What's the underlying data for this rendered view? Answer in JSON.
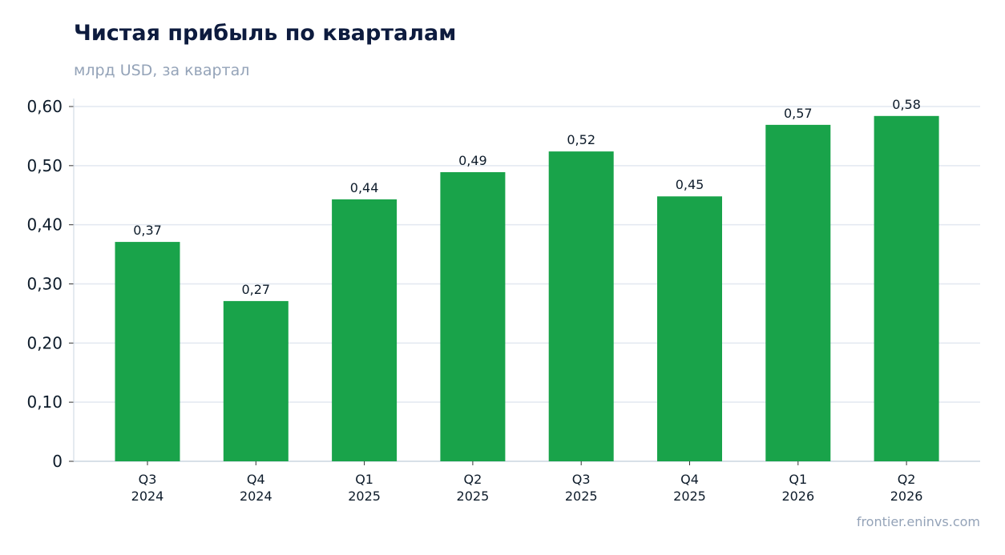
{
  "chart_data": {
    "type": "bar",
    "title": "Чистая прибыль по кварталам",
    "subtitle": "млрд USD, за квартал",
    "categories": [
      [
        "Q3",
        "2024"
      ],
      [
        "Q4",
        "2024"
      ],
      [
        "Q1",
        "2025"
      ],
      [
        "Q2",
        "2025"
      ],
      [
        "Q3",
        "2025"
      ],
      [
        "Q4",
        "2025"
      ],
      [
        "Q1",
        "2026"
      ],
      [
        "Q2",
        "2026"
      ]
    ],
    "values": [
      0.371,
      0.271,
      0.443,
      0.489,
      0.524,
      0.448,
      0.569,
      0.584
    ],
    "value_labels": [
      "0,37",
      "0,27",
      "0,44",
      "0,49",
      "0,52",
      "0,45",
      "0,57",
      "0,58"
    ],
    "yticks": [
      0,
      0.1,
      0.2,
      0.3,
      0.4,
      0.5,
      0.6
    ],
    "ytick_labels": [
      "0",
      "0,10",
      "0,20",
      "0,30",
      "0,40",
      "0,50",
      "0,60"
    ],
    "ylim": [
      0,
      0.6
    ],
    "grid": true,
    "legend": false,
    "colors": {
      "bar": "#19a34a",
      "grid": "#e2e8f0",
      "axis": "#cbd5e1",
      "text": "#0d1b2a"
    }
  },
  "source": "frontier.eninvs.com"
}
